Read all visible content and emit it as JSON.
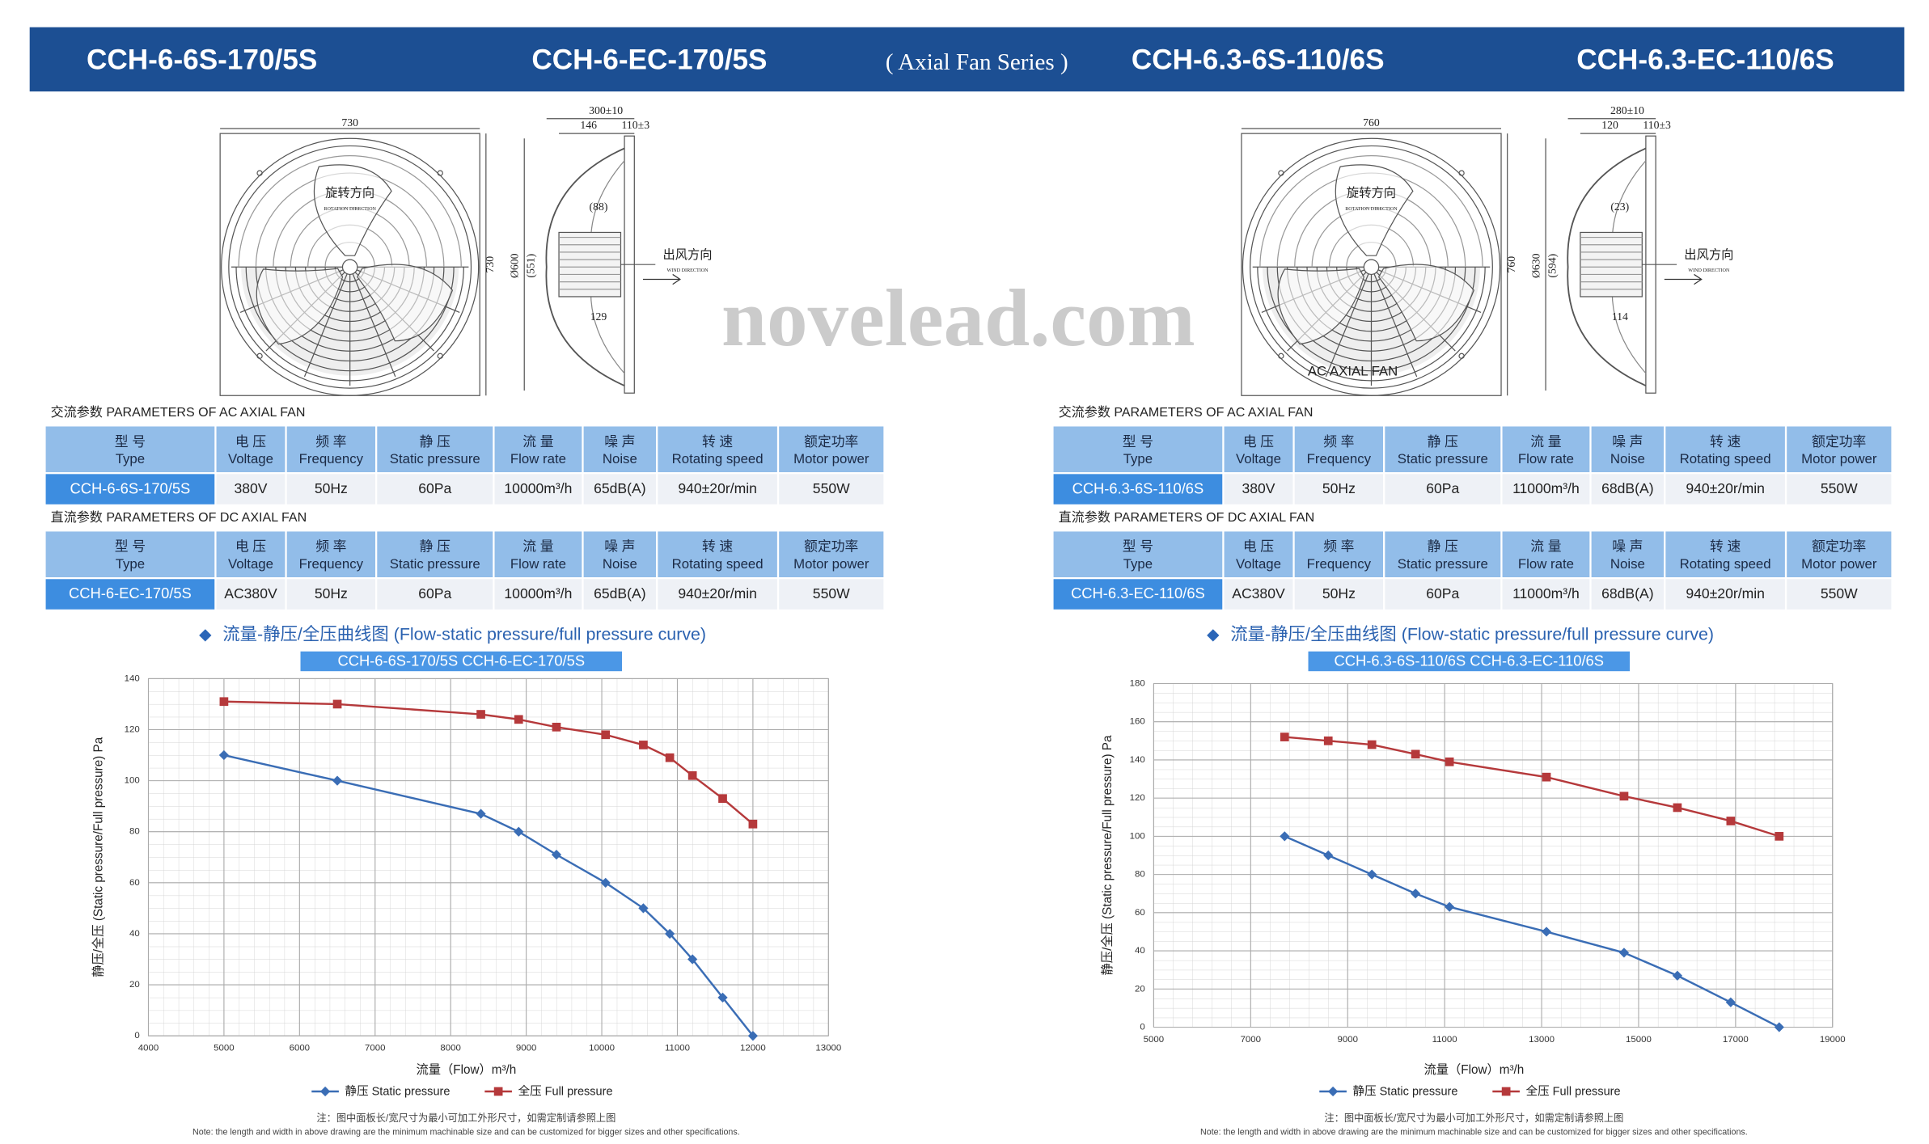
{
  "header": {
    "models": [
      "CCH-6-6S-170/5S",
      "CCH-6-EC-170/5S",
      "CCH-6.3-6S-110/6S",
      "CCH-6.3-EC-110/6S"
    ],
    "series_label": "( Axial Fan Series )"
  },
  "watermark": "novelead.com",
  "products": [
    {
      "drawing": {
        "width": "730",
        "height": "730",
        "diameter": "Ø600",
        "inner_diameter": "(551)",
        "depth": "300±10",
        "depth_a": "146",
        "depth_b": "110±3",
        "hub": "(88)",
        "motor": "129",
        "rotation_cn": "旋转方向",
        "rotation_en": "ROTATION DIRECTION",
        "wind_cn": "出风方向",
        "wind_en": "WIND DIRECTION"
      },
      "ac_table": {
        "label": "交流参数  PARAMETERS OF AC AXIAL FAN",
        "headers": [
          [
            "型 号",
            "Type"
          ],
          [
            "电 压",
            "Voltage"
          ],
          [
            "频 率",
            "Frequency"
          ],
          [
            "静 压",
            "Static pressure"
          ],
          [
            "流 量",
            "Flow rate"
          ],
          [
            "噪 声",
            "Noise"
          ],
          [
            "转 速",
            "Rotating speed"
          ],
          [
            "额定功率",
            "Motor power"
          ]
        ],
        "row": [
          "CCH-6-6S-170/5S",
          "380V",
          "50Hz",
          "60Pa",
          "10000m³/h",
          "65dB(A)",
          "940±20r/min",
          "550W"
        ]
      },
      "dc_table": {
        "label": "直流参数  PARAMETERS OF DC AXIAL FAN",
        "headers": [
          [
            "型 号",
            "Type"
          ],
          [
            "电 压",
            "Voltage"
          ],
          [
            "频 率",
            "Frequency"
          ],
          [
            "静 压",
            "Static pressure"
          ],
          [
            "流 量",
            "Flow rate"
          ],
          [
            "噪 声",
            "Noise"
          ],
          [
            "转 速",
            "Rotating speed"
          ],
          [
            "额定功率",
            "Motor power"
          ]
        ],
        "row": [
          "CCH-6-EC-170/5S",
          "AC380V",
          "50Hz",
          "60Pa",
          "10000m³/h",
          "65dB(A)",
          "940±20r/min",
          "550W"
        ]
      },
      "curve_title": "流量-静压/全压曲线图 (Flow-static pressure/full pressure curve)",
      "curve_models": "CCH-6-6S-170/5S  CCH-6-EC-170/5S",
      "notes": [
        "注：图中面板长/宽尺寸为最小可加工外形尺寸，如需定制请参照上图",
        "Note: the length and width in above drawing are the minimum machinable size and can be customized for bigger sizes and other specifications."
      ]
    },
    {
      "drawing": {
        "width": "760",
        "height": "760",
        "diameter": "Ø630",
        "inner_diameter": "(594)",
        "depth": "280±10",
        "depth_a": "120",
        "depth_b": "110±3",
        "hub": "(23)",
        "motor": "114",
        "rotation_cn": "旋转方向",
        "rotation_en": "ROTATION DIRECTION",
        "wind_cn": "出风方向",
        "wind_en": "WIND DIRECTION",
        "fan_label": "AC AXIAL FAN"
      },
      "ac_table": {
        "label": "交流参数  PARAMETERS OF AC AXIAL FAN",
        "headers": [
          [
            "型 号",
            "Type"
          ],
          [
            "电 压",
            "Voltage"
          ],
          [
            "频 率",
            "Frequency"
          ],
          [
            "静 压",
            "Static pressure"
          ],
          [
            "流 量",
            "Flow rate"
          ],
          [
            "噪 声",
            "Noise"
          ],
          [
            "转 速",
            "Rotating speed"
          ],
          [
            "额定功率",
            "Motor power"
          ]
        ],
        "row": [
          "CCH-6.3-6S-110/6S",
          "380V",
          "50Hz",
          "60Pa",
          "11000m³/h",
          "68dB(A)",
          "940±20r/min",
          "550W"
        ]
      },
      "dc_table": {
        "label": "直流参数  PARAMETERS OF DC AXIAL FAN",
        "headers": [
          [
            "型 号",
            "Type"
          ],
          [
            "电 压",
            "Voltage"
          ],
          [
            "频 率",
            "Frequency"
          ],
          [
            "静 压",
            "Static pressure"
          ],
          [
            "流 量",
            "Flow rate"
          ],
          [
            "噪 声",
            "Noise"
          ],
          [
            "转 速",
            "Rotating speed"
          ],
          [
            "额定功率",
            "Motor power"
          ]
        ],
        "row": [
          "CCH-6.3-EC-110/6S",
          "AC380V",
          "50Hz",
          "60Pa",
          "11000m³/h",
          "68dB(A)",
          "940±20r/min",
          "550W"
        ]
      },
      "curve_title": "流量-静压/全压曲线图 (Flow-static pressure/full pressure curve)",
      "curve_models": "CCH-6.3-6S-110/6S  CCH-6.3-EC-110/6S",
      "notes": [
        "注：图中面板长/宽尺寸为最小可加工外形尺寸，如需定制请参照上图",
        "Note: the length and width in above drawing are the minimum machinable size and can be customized for bigger sizes and other specifications."
      ]
    }
  ],
  "chart_data": [
    {
      "type": "line",
      "xlabel": "流量（Flow）m³/h",
      "ylabel": "静压/全压 (Static pressure/Full pressure) Pa",
      "x": [
        5000,
        6500,
        8400,
        8900,
        9400,
        10050,
        10550,
        10900,
        11200,
        11600,
        12000
      ],
      "xlim": [
        4000,
        13000
      ],
      "xticks": [
        4000,
        5000,
        6000,
        7000,
        8000,
        9000,
        10000,
        11000,
        12000,
        13000
      ],
      "ylim": [
        0,
        140
      ],
      "yticks": [
        0,
        20,
        40,
        60,
        80,
        100,
        120,
        140
      ],
      "grid": true,
      "series": [
        {
          "name": "静压 Static pressure",
          "color": "#3a6db5",
          "marker": "diamond",
          "values": [
            110,
            100,
            87,
            80,
            71,
            60,
            50,
            40,
            30,
            15,
            0
          ]
        },
        {
          "name": "全压 Full pressure",
          "color": "#b5393b",
          "marker": "square",
          "values": [
            131,
            130,
            126,
            124,
            121,
            118,
            114,
            109,
            102,
            93,
            83
          ]
        }
      ]
    },
    {
      "type": "line",
      "xlabel": "流量（Flow）m³/h",
      "ylabel": "静压/全压 (Static pressure/Full pressure) Pa",
      "x": [
        7700,
        8600,
        9500,
        10400,
        11100,
        13100,
        14700,
        15800,
        16900,
        17900
      ],
      "xlim": [
        5000,
        19000
      ],
      "xticks": [
        5000,
        7000,
        9000,
        11000,
        13000,
        15000,
        17000,
        19000
      ],
      "ylim": [
        0,
        180
      ],
      "yticks": [
        0,
        20,
        40,
        60,
        80,
        100,
        120,
        140,
        160,
        180
      ],
      "grid": true,
      "series": [
        {
          "name": "静压 Static pressure",
          "color": "#3a6db5",
          "marker": "diamond",
          "values": [
            100,
            90,
            80,
            70,
            63,
            50,
            39,
            27,
            13,
            0
          ]
        },
        {
          "name": "全压 Full pressure",
          "color": "#b5393b",
          "marker": "square",
          "values": [
            152,
            150,
            148,
            143,
            139,
            131,
            121,
            115,
            108,
            100
          ]
        }
      ]
    }
  ]
}
